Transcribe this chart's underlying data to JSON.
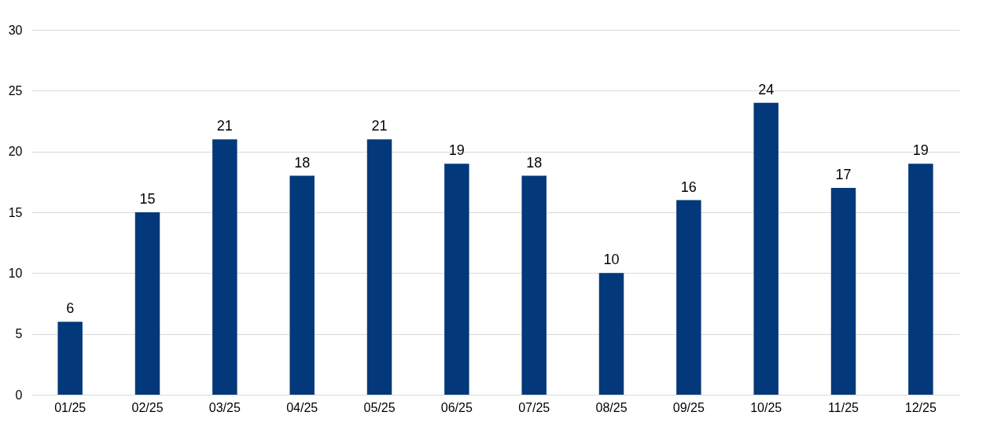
{
  "chart_data": {
    "type": "bar",
    "categories": [
      "01/25",
      "02/25",
      "03/25",
      "04/25",
      "05/25",
      "06/25",
      "07/25",
      "08/25",
      "09/25",
      "10/25",
      "11/25",
      "12/25"
    ],
    "values": [
      6,
      15,
      21,
      18,
      21,
      19,
      18,
      10,
      16,
      24,
      17,
      19
    ],
    "color": "#03397a",
    "ylim": [
      0,
      30
    ],
    "yticks": [
      0,
      5,
      10,
      15,
      20,
      25,
      30
    ],
    "grid": "y",
    "data_labels": true
  }
}
